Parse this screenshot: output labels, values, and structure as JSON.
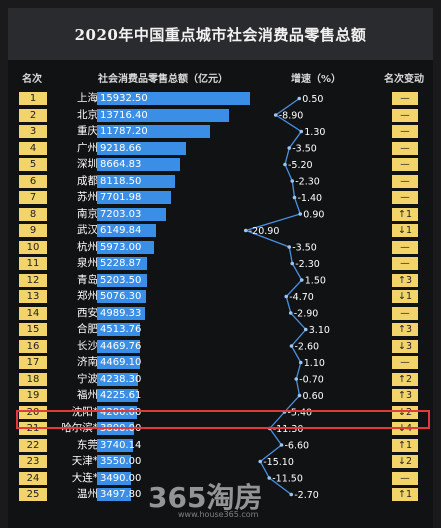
{
  "title": "2020年中国重点城市社会消费品零售总额",
  "headers": {
    "rank": "名次",
    "sales": "社会消费品零售总额（亿元）",
    "growth": "增速（%）",
    "rank_change": "名次变动"
  },
  "colors": {
    "bar": "#3a8ee6",
    "rank_box": "#f3d46a",
    "line": "#4a90e2",
    "highlight": "#e23a3a"
  },
  "chart_data": {
    "type": "table",
    "title": "2020年中国重点城市社会消费品零售总额",
    "sales_axis_max": 16000,
    "growth_axis": [
      -16,
      22
    ],
    "rows": [
      {
        "rank": "1",
        "city": "上海",
        "sales": 15932.5,
        "sales_label": "15932.50",
        "growth": 0.5,
        "growth_label": "0.50",
        "change": "—"
      },
      {
        "rank": "2",
        "city": "北京",
        "sales": 13716.4,
        "sales_label": "13716.40",
        "growth": -8.9,
        "growth_label": "-8.90",
        "change": "—"
      },
      {
        "rank": "3",
        "city": "重庆",
        "sales": 11787.2,
        "sales_label": "11787.20",
        "growth": 1.3,
        "growth_label": "1.30",
        "change": "—"
      },
      {
        "rank": "4",
        "city": "广州",
        "sales": 9218.66,
        "sales_label": "9218.66",
        "growth": -3.5,
        "growth_label": "-3.50",
        "change": "—"
      },
      {
        "rank": "5",
        "city": "深圳",
        "sales": 8664.83,
        "sales_label": "8664.83",
        "growth": -5.2,
        "growth_label": "-5.20",
        "change": "—"
      },
      {
        "rank": "6",
        "city": "成都",
        "sales": 8118.5,
        "sales_label": "8118.50",
        "growth": -2.3,
        "growth_label": "-2.30",
        "change": "—"
      },
      {
        "rank": "7",
        "city": "苏州",
        "sales": 7701.98,
        "sales_label": "7701.98",
        "growth": -1.4,
        "growth_label": "-1.40",
        "change": "—"
      },
      {
        "rank": "8",
        "city": "南京",
        "sales": 7203.03,
        "sales_label": "7203.03",
        "growth": 0.9,
        "growth_label": "0.90",
        "change": "↑1"
      },
      {
        "rank": "9",
        "city": "武汉",
        "sales": 6149.84,
        "sales_label": "6149.84",
        "growth": -20.9,
        "growth_label": "-20.90",
        "change": "↓1"
      },
      {
        "rank": "10",
        "city": "杭州",
        "sales": 5973.0,
        "sales_label": "5973.00",
        "growth": -3.5,
        "growth_label": "-3.50",
        "change": "—"
      },
      {
        "rank": "11",
        "city": "泉州",
        "sales": 5228.87,
        "sales_label": "5228.87",
        "growth": -2.3,
        "growth_label": "-2.30",
        "change": "—"
      },
      {
        "rank": "12",
        "city": "青岛",
        "sales": 5203.5,
        "sales_label": "5203.50",
        "growth": 1.5,
        "growth_label": "1.50",
        "change": "↑3"
      },
      {
        "rank": "13",
        "city": "郑州",
        "sales": 5076.3,
        "sales_label": "5076.30",
        "growth": -4.7,
        "growth_label": "-4.70",
        "change": "↓1"
      },
      {
        "rank": "14",
        "city": "西安",
        "sales": 4989.33,
        "sales_label": "4989.33",
        "growth": -2.9,
        "growth_label": "-2.90",
        "change": "—"
      },
      {
        "rank": "15",
        "city": "合肥",
        "sales": 4513.76,
        "sales_label": "4513.76",
        "growth": 3.1,
        "growth_label": "3.10",
        "change": "↑3"
      },
      {
        "rank": "16",
        "city": "长沙",
        "sales": 4469.76,
        "sales_label": "4469.76",
        "growth": -2.6,
        "growth_label": "-2.60",
        "change": "↓3"
      },
      {
        "rank": "17",
        "city": "济南",
        "sales": 4469.1,
        "sales_label": "4469.10",
        "growth": 1.1,
        "growth_label": "1.10",
        "change": "—"
      },
      {
        "rank": "18",
        "city": "宁波",
        "sales": 4238.3,
        "sales_label": "4238.30",
        "growth": -0.7,
        "growth_label": "-0.70",
        "change": "↑2"
      },
      {
        "rank": "19",
        "city": "福州",
        "sales": 4225.61,
        "sales_label": "4225.61",
        "growth": 0.6,
        "growth_label": "0.60",
        "change": "↑3"
      },
      {
        "rank": "20",
        "city": "沈阳*",
        "sales": 4200.0,
        "sales_label": "4200.00",
        "growth": -5.4,
        "growth_label": "-5.40",
        "change": "↓2"
      },
      {
        "rank": "21",
        "city": "哈尔滨*",
        "sales": 3800.0,
        "sales_label": "3800.00",
        "growth": -11.3,
        "growth_label": "-11.30",
        "change": "↓4"
      },
      {
        "rank": "22",
        "city": "东莞",
        "sales": 3740.14,
        "sales_label": "3740.14",
        "growth": -6.6,
        "growth_label": "-6.60",
        "change": "↑1"
      },
      {
        "rank": "23",
        "city": "天津*",
        "sales": 3550.0,
        "sales_label": "3550.00",
        "growth": -15.1,
        "growth_label": "-15.10",
        "change": "↓2"
      },
      {
        "rank": "24",
        "city": "大连*",
        "sales": 3490.0,
        "sales_label": "3490.00",
        "growth": -11.5,
        "growth_label": "-11.50",
        "change": "—"
      },
      {
        "rank": "25",
        "city": "温州",
        "sales": 3497.8,
        "sales_label": "3497.80",
        "growth": -2.7,
        "growth_label": "-2.70",
        "change": "↑1"
      }
    ]
  },
  "highlighted_rank": "19",
  "watermark": {
    "brand": "365淘房",
    "url": "www.house365.com"
  }
}
